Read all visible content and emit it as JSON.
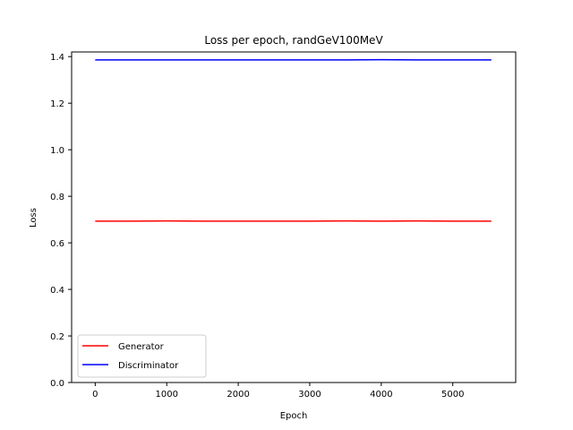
{
  "chart_data": {
    "type": "line",
    "title": "Loss per epoch, randGeV100MeV",
    "xlabel": "Epoch",
    "ylabel": "Loss",
    "xlim": [
      -330,
      5880
    ],
    "ylim": [
      0.0,
      1.42
    ],
    "xticks": [
      0,
      1000,
      2000,
      3000,
      4000,
      5000
    ],
    "yticks": [
      0.0,
      0.2,
      0.4,
      0.6,
      0.8,
      1.0,
      1.2,
      1.4
    ],
    "grid": false,
    "legend_position": "lower-left",
    "series": [
      {
        "name": "Generator",
        "color": "#ff0000",
        "x": [
          0,
          500,
          1000,
          1500,
          2000,
          2500,
          3000,
          3500,
          4000,
          4500,
          5000,
          5540
        ],
        "y": [
          0.693,
          0.693,
          0.694,
          0.693,
          0.693,
          0.693,
          0.693,
          0.694,
          0.693,
          0.694,
          0.693,
          0.693
        ]
      },
      {
        "name": "Discriminator",
        "color": "#0000ff",
        "x": [
          0,
          500,
          1000,
          1500,
          2000,
          2500,
          3000,
          3500,
          4000,
          4500,
          5000,
          5540
        ],
        "y": [
          1.386,
          1.386,
          1.386,
          1.386,
          1.386,
          1.386,
          1.386,
          1.386,
          1.387,
          1.386,
          1.386,
          1.386
        ]
      }
    ]
  }
}
